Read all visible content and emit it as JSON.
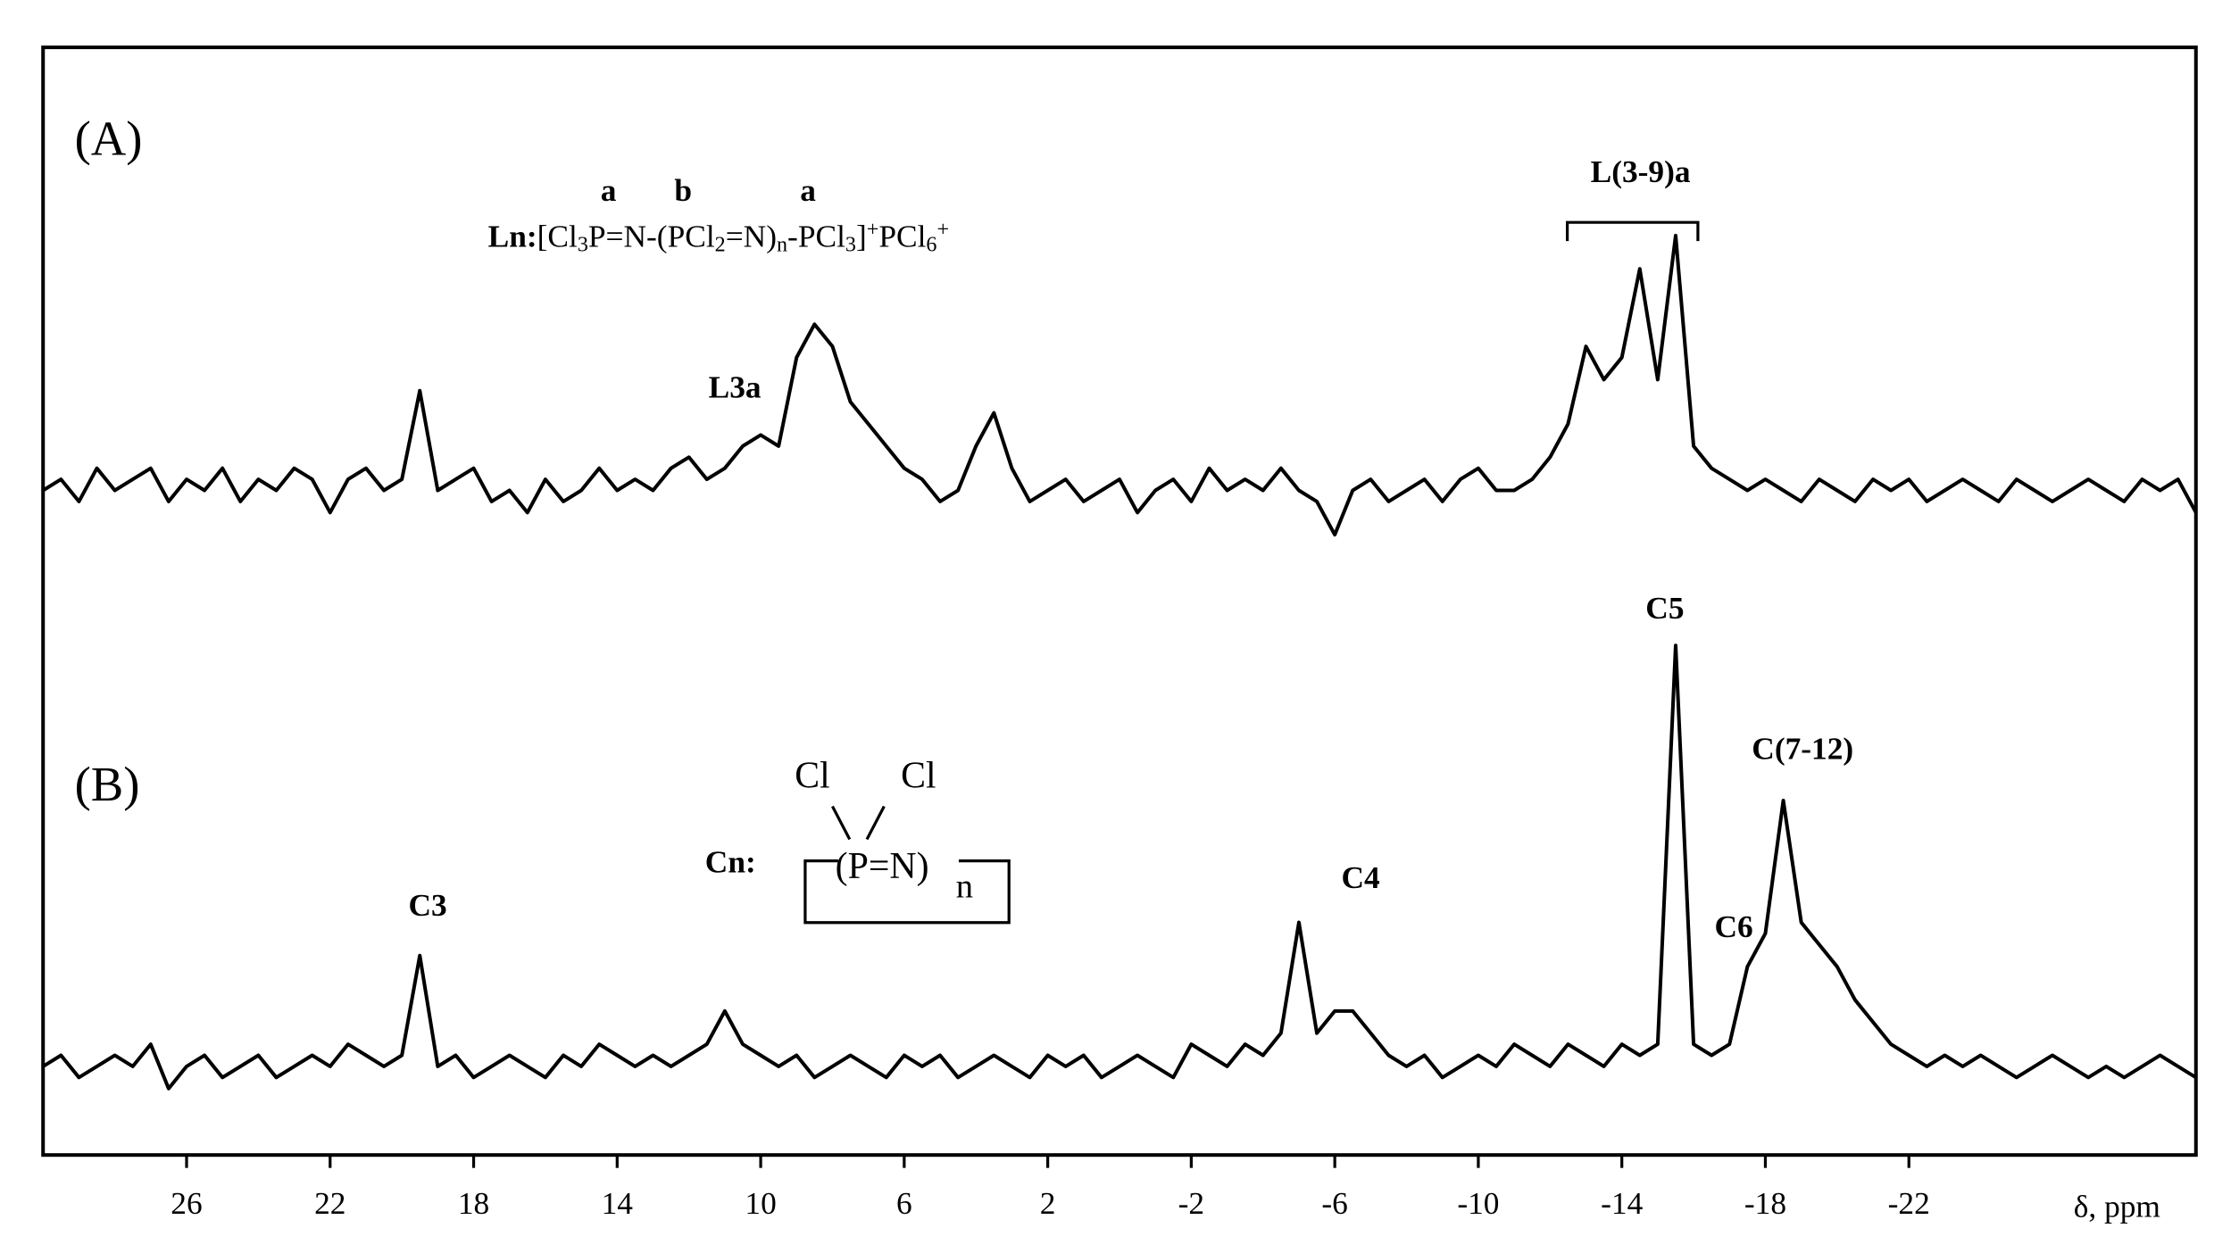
{
  "chart_data": {
    "type": "line",
    "x_label": "δ, ppm",
    "xlim": [
      30,
      -30
    ],
    "xticks": [
      26,
      22,
      18,
      14,
      10,
      6,
      2,
      -2,
      -6,
      -10,
      -14,
      -18,
      -22
    ],
    "ylim": [
      0,
      100
    ],
    "x": [
      30,
      29.5,
      29,
      28.5,
      28,
      27.5,
      27,
      26.5,
      26,
      25.5,
      25,
      24.5,
      24,
      23.5,
      23,
      22.5,
      22,
      21.5,
      21,
      20.5,
      20,
      19.5,
      19,
      18.5,
      18,
      17.5,
      17,
      16.5,
      16,
      15.5,
      15,
      14.5,
      14,
      13.5,
      13,
      12.5,
      12,
      11.5,
      11,
      10.5,
      10,
      9.5,
      9,
      8.5,
      8,
      7.5,
      7,
      6.5,
      6,
      5.5,
      5,
      4.5,
      4,
      3.5,
      3,
      2.5,
      2,
      1.5,
      1,
      0.5,
      0,
      -0.5,
      -1,
      -1.5,
      -2,
      -2.5,
      -3,
      -3.5,
      -4,
      -4.5,
      -5,
      -5.5,
      -6,
      -6.5,
      -7,
      -7.5,
      -8,
      -8.5,
      -9,
      -9.5,
      -10,
      -10.5,
      -11,
      -11.5,
      -12,
      -12.5,
      -13,
      -13.5,
      -14,
      -14.5,
      -15,
      -15.5,
      -16,
      -16.5,
      -17,
      -17.5,
      -18,
      -18.5,
      -19,
      -19.5,
      -20,
      -20.5,
      -21,
      -21.5,
      -22,
      -22.5,
      -23,
      -23.5,
      -24,
      -24.5,
      -25,
      -25.5,
      -26,
      -26.5,
      -27,
      -27.5,
      -28,
      -28.5,
      -29,
      -29.5,
      -30
    ],
    "series": [
      {
        "name": "(A)",
        "color": "#000000",
        "values": [
          60,
          61,
          59,
          62,
          60,
          61,
          62,
          59,
          61,
          60,
          62,
          59,
          61,
          60,
          62,
          61,
          58,
          61,
          62,
          60,
          61,
          69,
          60,
          61,
          62,
          59,
          60,
          58,
          61,
          59,
          60,
          62,
          60,
          61,
          60,
          62,
          63,
          61,
          62,
          64,
          65,
          64,
          72,
          75,
          73,
          68,
          66,
          64,
          62,
          61,
          59,
          60,
          64,
          67,
          62,
          59,
          60,
          61,
          59,
          60,
          61,
          58,
          60,
          61,
          59,
          62,
          60,
          61,
          60,
          62,
          60,
          59,
          56,
          60,
          61,
          59,
          60,
          61,
          59,
          61,
          62,
          60,
          60,
          61,
          63,
          66,
          73,
          70,
          72,
          80,
          70,
          83,
          64,
          62,
          61,
          60,
          61,
          60,
          59,
          61,
          60,
          59,
          61,
          60,
          61,
          59,
          60,
          61,
          60,
          59,
          61,
          60,
          59,
          60,
          61,
          60,
          59,
          61,
          60,
          61,
          58
        ]
      },
      {
        "name": "(B)",
        "color": "#000000",
        "values": [
          8,
          9,
          7,
          8,
          9,
          8,
          10,
          6,
          8,
          9,
          7,
          8,
          9,
          7,
          8,
          9,
          8,
          10,
          9,
          8,
          9,
          18,
          8,
          9,
          7,
          8,
          9,
          8,
          7,
          9,
          8,
          10,
          9,
          8,
          9,
          8,
          9,
          10,
          13,
          10,
          9,
          8,
          9,
          7,
          8,
          9,
          8,
          7,
          9,
          8,
          9,
          7,
          8,
          9,
          8,
          7,
          9,
          8,
          9,
          7,
          8,
          9,
          8,
          7,
          10,
          9,
          8,
          10,
          9,
          11,
          21,
          11,
          13,
          13,
          11,
          9,
          8,
          9,
          7,
          8,
          9,
          8,
          10,
          9,
          8,
          10,
          9,
          8,
          10,
          9,
          10,
          46,
          10,
          9,
          10,
          17,
          20,
          32,
          21,
          19,
          17,
          14,
          12,
          10,
          9,
          8,
          9,
          8,
          9,
          8,
          7,
          8,
          9,
          8,
          7,
          8,
          7,
          8,
          9,
          8,
          7
        ]
      }
    ],
    "annotations": {
      "L_range": "L(3-9)a",
      "L3a": "L3a",
      "C3": "C3",
      "C4": "C4",
      "C5": "C5",
      "C6": "C6",
      "C7_12": "C(7-12)",
      "site_a1": "a",
      "site_b": "b",
      "site_a2": "a",
      "ln_label": "Ln:",
      "ln_formula": [
        "[Cl",
        "3",
        "P=N-(PCl",
        "2",
        "=N)",
        "n",
        "-PCl",
        "3",
        "]",
        "+",
        "PCl",
        "6",
        "+"
      ],
      "cn_label": "Cn:",
      "cn_cl1": "Cl",
      "cn_cl2": "Cl",
      "cn_ring": "(P=N)",
      "cn_n": "n"
    }
  }
}
